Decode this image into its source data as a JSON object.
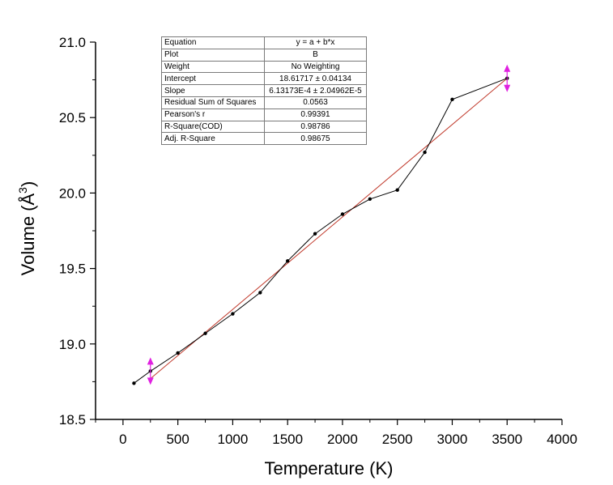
{
  "chart_data": {
    "type": "line",
    "xlabel": "Temperature (K)",
    "ylabel_base": "Volume (Å",
    "ylabel_sup": "3",
    "ylabel_end": ")",
    "xlim": [
      -250,
      4000
    ],
    "ylim": [
      18.5,
      21.0
    ],
    "x_ticks": [
      0,
      500,
      1000,
      1500,
      2000,
      2500,
      3000,
      3500,
      4000
    ],
    "x_tick_labels": [
      "0",
      "500",
      "1000",
      "1500",
      "2000",
      "2500",
      "3000",
      "3500",
      "4000"
    ],
    "y_ticks": [
      18.5,
      19.0,
      19.5,
      20.0,
      20.5,
      21.0
    ],
    "y_tick_labels": [
      "18.5",
      "19.0",
      "19.5",
      "20.0",
      "20.5",
      "21.0"
    ],
    "grid": false,
    "series": [
      {
        "color": "#000000",
        "style": "line+markers",
        "x": [
          100,
          250,
          500,
          750,
          1000,
          1250,
          1500,
          1750,
          2000,
          2250,
          2500,
          2750,
          3000,
          3500
        ],
        "y": [
          18.74,
          18.82,
          18.94,
          19.07,
          19.2,
          19.34,
          19.55,
          19.73,
          19.86,
          19.96,
          20.02,
          20.27,
          20.62,
          20.76
        ]
      },
      {
        "color": "#c0392b",
        "style": "fit-line",
        "x": [
          250,
          3500
        ],
        "y": [
          18.77,
          20.76
        ]
      }
    ],
    "range_markers": {
      "color": "#e020e0",
      "x": [
        250,
        3500
      ],
      "y": [
        18.82,
        20.76
      ]
    }
  },
  "fit_table": {
    "rows": [
      {
        "key": "Equation",
        "value": "y = a + b*x"
      },
      {
        "key": "Plot",
        "value": "B"
      },
      {
        "key": "Weight",
        "value": "No Weighting"
      },
      {
        "key": "Intercept",
        "value": "18.61717 ± 0.04134"
      },
      {
        "key": "Slope",
        "value": "6.13173E-4 ± 2.04962E-5"
      },
      {
        "key": "Residual Sum of Squares",
        "value": "0.0563"
      },
      {
        "key": "Pearson's r",
        "value": "0.99391"
      },
      {
        "key": "R-Square(COD)",
        "value": "0.98786"
      },
      {
        "key": "Adj. R-Square",
        "value": "0.98675"
      }
    ]
  }
}
